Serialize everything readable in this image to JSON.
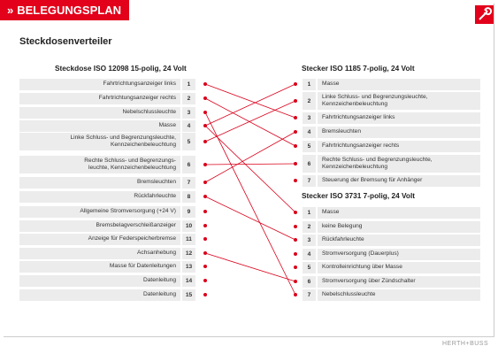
{
  "header": {
    "title": "BELEGUNGSPLAN"
  },
  "heading": "Steckdosenverteiler",
  "socket": {
    "title": "Steckdose ISO 12098 15-polig, 24 Volt",
    "pins": [
      {
        "number": 1,
        "label": "Fahrtrichtungsanzeiger links"
      },
      {
        "number": 2,
        "label": "Fahrtrichtungsanzeiger rechts"
      },
      {
        "number": 3,
        "label": "Nebelschlussleuchte"
      },
      {
        "number": 4,
        "label": "Masse"
      },
      {
        "number": 5,
        "label": "Linke Schluss- und Begrenzungsleuchte,\nKennzeichenbeleuchtung"
      },
      {
        "number": 6,
        "label": "Rechte Schluss- und Begrenzungs-\nleuchte, Kennzeichenbeleuchtung"
      },
      {
        "number": 7,
        "label": "Bremsleuchten"
      },
      {
        "number": 8,
        "label": "Rückfahrleuchte"
      },
      {
        "number": 9,
        "label": "Allgemeine Stromversorgung (+24 V)"
      },
      {
        "number": 10,
        "label": "Bremsbelagverschleißanzeiger"
      },
      {
        "number": 11,
        "label": "Anzeige für Federspeicherbremse"
      },
      {
        "number": 12,
        "label": "Achsanhebung"
      },
      {
        "number": 13,
        "label": "Masse für Datenleitungen"
      },
      {
        "number": 14,
        "label": "Datenleitung"
      },
      {
        "number": 15,
        "label": "Datenleitung"
      }
    ]
  },
  "plug_1185": {
    "title": "Stecker ISO 1185 7-polig, 24 Volt",
    "pins": [
      {
        "number": 1,
        "label": "Masse"
      },
      {
        "number": 2,
        "label": "Linke Schluss- und Begrenzungsleuchte,\nKennzeichenbeleuchtung"
      },
      {
        "number": 3,
        "label": "Fahrtrichtungsanzeiger links"
      },
      {
        "number": 4,
        "label": "Bremsleuchten"
      },
      {
        "number": 5,
        "label": "Fahrtrichtungsanzeiger rechts"
      },
      {
        "number": 6,
        "label": "Rechte Schluss- und Begrenzungsleuchte,\nKennzeichenbeleuchtung"
      },
      {
        "number": 7,
        "label": "Steuerung der Bremsung für Anhänger"
      }
    ]
  },
  "plug_3731": {
    "title": "Stecker ISO 3731 7-polig, 24 Volt",
    "pins": [
      {
        "number": 1,
        "label": "Masse"
      },
      {
        "number": 2,
        "label": "keine Belegung"
      },
      {
        "number": 3,
        "label": "Rückfahrleuchte"
      },
      {
        "number": 4,
        "label": "Stromversorgung (Dauerplus)"
      },
      {
        "number": 5,
        "label": "Kontrolleinrichtung über Masse"
      },
      {
        "number": 6,
        "label": "Stromversorgung über Zündschalter"
      },
      {
        "number": 7,
        "label": "Nebelschlussleuchte"
      }
    ]
  },
  "footer": {
    "brand": "HERTH+BUSS"
  }
}
